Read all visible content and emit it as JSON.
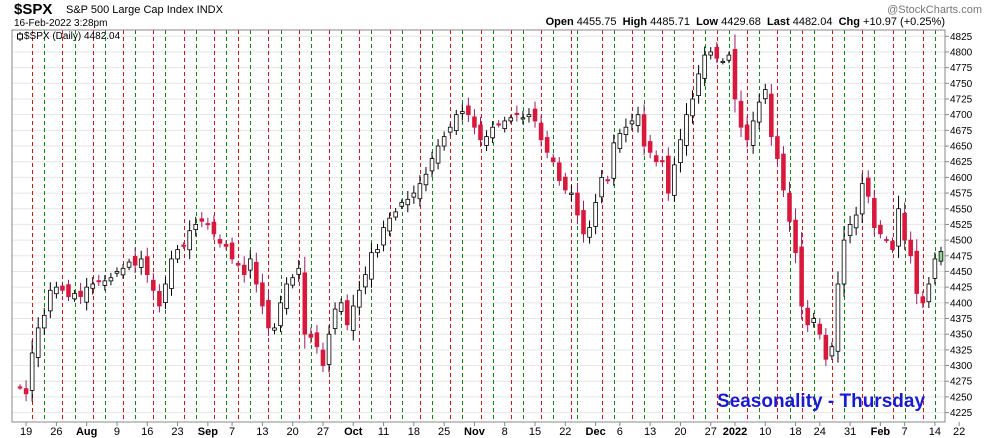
{
  "header": {
    "symbol": "$SPX",
    "name": "S&P 500 Large Cap Index INDX",
    "brand": "@StockCharts.com",
    "date": "16-Feb-2022 3:28pm",
    "open_label": "Open",
    "open": "4455.75",
    "high_label": "High",
    "high": "4485.71",
    "low_label": "Low",
    "low": "4429.68",
    "last_label": "Last",
    "last": "4482.04",
    "chg_label": "Chg",
    "chg": "+10.97 (+0.25%)"
  },
  "legend": {
    "text": "$SPX (Daily) 4482.04"
  },
  "badge": {
    "text": "Seasonality - Thursday"
  },
  "colors": {
    "up_fill": "#ffffff",
    "down_fill": "#d9183b",
    "last_fill": "#8fd98f",
    "wick": "#000000",
    "down_wick": "#9a1b6b",
    "red_line": "#e01010",
    "green_line": "#0a8a0a",
    "badge": "#1a1ad6",
    "grid": "#e6e6e6"
  },
  "chart_data": {
    "type": "candlestick",
    "title": "$SPX (Daily) 4482.04",
    "ylim": [
      4210,
      4835
    ],
    "y_ticks": [
      4225,
      4250,
      4275,
      4300,
      4325,
      4350,
      4375,
      4400,
      4425,
      4450,
      4475,
      4500,
      4525,
      4550,
      4575,
      4600,
      4625,
      4650,
      4675,
      4700,
      4725,
      4750,
      4775,
      4800,
      4825
    ],
    "x_tick_labels": [
      {
        "label": "19",
        "i": 1
      },
      {
        "label": "26",
        "i": 6
      },
      {
        "label": "Aug",
        "i": 11
      },
      {
        "label": "9",
        "i": 16
      },
      {
        "label": "16",
        "i": 21
      },
      {
        "label": "23",
        "i": 26
      },
      {
        "label": "Sep",
        "i": 31
      },
      {
        "label": "7",
        "i": 35
      },
      {
        "label": "13",
        "i": 40
      },
      {
        "label": "20",
        "i": 45
      },
      {
        "label": "27",
        "i": 50
      },
      {
        "label": "Oct",
        "i": 55
      },
      {
        "label": "11",
        "i": 60
      },
      {
        "label": "18",
        "i": 65
      },
      {
        "label": "25",
        "i": 70
      },
      {
        "label": "Nov",
        "i": 75
      },
      {
        "label": "8",
        "i": 80
      },
      {
        "label": "15",
        "i": 85
      },
      {
        "label": "22",
        "i": 90
      },
      {
        "label": "Dec",
        "i": 95
      },
      {
        "label": "6",
        "i": 99
      },
      {
        "label": "13",
        "i": 104
      },
      {
        "label": "20",
        "i": 109
      },
      {
        "label": "27",
        "i": 114
      },
      {
        "label": "2022",
        "i": 118
      },
      {
        "label": "10",
        "i": 123
      },
      {
        "label": "18",
        "i": 128
      },
      {
        "label": "24",
        "i": 132
      },
      {
        "label": "31",
        "i": 137
      },
      {
        "label": "Feb",
        "i": 142
      },
      {
        "label": "7",
        "i": 146
      },
      {
        "label": "14",
        "i": 151
      },
      {
        "label": "22",
        "i": 155
      }
    ],
    "vline_days": [
      {
        "i": 2,
        "color": "red"
      },
      {
        "i": 4,
        "color": "green"
      },
      {
        "i": 7,
        "color": "red"
      },
      {
        "i": 9,
        "color": "green"
      },
      {
        "i": 12,
        "color": "red"
      },
      {
        "i": 14,
        "color": "green"
      },
      {
        "i": 17,
        "color": "red"
      },
      {
        "i": 19,
        "color": "green"
      },
      {
        "i": 22,
        "color": "red"
      },
      {
        "i": 24,
        "color": "green"
      },
      {
        "i": 27,
        "color": "red"
      },
      {
        "i": 29,
        "color": "green"
      },
      {
        "i": 32,
        "color": "red"
      },
      {
        "i": 34,
        "color": "green"
      },
      {
        "i": 36,
        "color": "red"
      },
      {
        "i": 38,
        "color": "green"
      },
      {
        "i": 41,
        "color": "red"
      },
      {
        "i": 43,
        "color": "green"
      },
      {
        "i": 46,
        "color": "red"
      },
      {
        "i": 48,
        "color": "green"
      },
      {
        "i": 51,
        "color": "red"
      },
      {
        "i": 53,
        "color": "green"
      },
      {
        "i": 56,
        "color": "red"
      },
      {
        "i": 58,
        "color": "green"
      },
      {
        "i": 61,
        "color": "red"
      },
      {
        "i": 63,
        "color": "green"
      },
      {
        "i": 66,
        "color": "red"
      },
      {
        "i": 68,
        "color": "green"
      },
      {
        "i": 71,
        "color": "red"
      },
      {
        "i": 73,
        "color": "green"
      },
      {
        "i": 76,
        "color": "red"
      },
      {
        "i": 78,
        "color": "green"
      },
      {
        "i": 81,
        "color": "red"
      },
      {
        "i": 83,
        "color": "green"
      },
      {
        "i": 86,
        "color": "red"
      },
      {
        "i": 88,
        "color": "green"
      },
      {
        "i": 91,
        "color": "red"
      },
      {
        "i": 92,
        "color": "green"
      },
      {
        "i": 96,
        "color": "red"
      },
      {
        "i": 98,
        "color": "green"
      },
      {
        "i": 101,
        "color": "red"
      },
      {
        "i": 103,
        "color": "green"
      },
      {
        "i": 106,
        "color": "red"
      },
      {
        "i": 108,
        "color": "green"
      },
      {
        "i": 111,
        "color": "red"
      },
      {
        "i": 113,
        "color": "green"
      },
      {
        "i": 115,
        "color": "red"
      },
      {
        "i": 117,
        "color": "green"
      },
      {
        "i": 120,
        "color": "red"
      },
      {
        "i": 122,
        "color": "green"
      },
      {
        "i": 125,
        "color": "red"
      },
      {
        "i": 127,
        "color": "green"
      },
      {
        "i": 129,
        "color": "red"
      },
      {
        "i": 131,
        "color": "green"
      },
      {
        "i": 134,
        "color": "red"
      },
      {
        "i": 136,
        "color": "green"
      },
      {
        "i": 139,
        "color": "red"
      },
      {
        "i": 141,
        "color": "green"
      },
      {
        "i": 144,
        "color": "red"
      },
      {
        "i": 146,
        "color": "green"
      },
      {
        "i": 149,
        "color": "red"
      },
      {
        "i": 151,
        "color": "green"
      }
    ],
    "closes": [
      4265,
      4255,
      4320,
      4360,
      4380,
      4420,
      4425,
      4420,
      4410,
      4415,
      4410,
      4425,
      4430,
      4435,
      4435,
      4440,
      4450,
      4455,
      4465,
      4460,
      4470,
      4445,
      4420,
      4395,
      4430,
      4470,
      4485,
      4490,
      4515,
      4525,
      4530,
      4525,
      4510,
      4495,
      4490,
      4470,
      4460,
      4445,
      4470,
      4430,
      4395,
      4360,
      4360,
      4400,
      4430,
      4440,
      4455,
      4350,
      4345,
      4330,
      4300,
      4350,
      4390,
      4400,
      4365,
      4395,
      4420,
      4445,
      4480,
      4485,
      4520,
      4535,
      4545,
      4560,
      4565,
      4575,
      4590,
      4605,
      4630,
      4650,
      4665,
      4680,
      4700,
      4705,
      4700,
      4680,
      4660,
      4665,
      4680,
      4685,
      4690,
      4695,
      4700,
      4695,
      4700,
      4690,
      4660,
      4640,
      4625,
      4595,
      4580,
      4575,
      4540,
      4510,
      4520,
      4560,
      4600,
      4595,
      4655,
      4670,
      4680,
      4690,
      4700,
      4650,
      4640,
      4625,
      4625,
      4575,
      4620,
      4660,
      4700,
      4725,
      4765,
      4795,
      4800,
      4790,
      4785,
      4795,
      4725,
      4680,
      4660,
      4690,
      4720,
      4740,
      4665,
      4630,
      4580,
      4530,
      4480,
      4395,
      4365,
      4375,
      4350,
      4310,
      4330,
      4430,
      4500,
      4525,
      4540,
      4590,
      4570,
      4520,
      4510,
      4500,
      4485,
      4550,
      4500,
      4475,
      4415,
      4400,
      4430,
      4470,
      4482
    ]
  }
}
